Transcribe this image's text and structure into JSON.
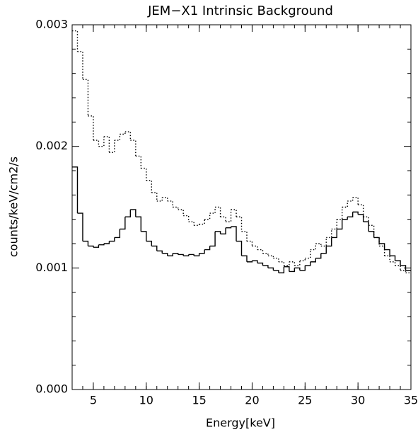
{
  "chart_data": {
    "type": "step",
    "title": "JEM−X1 Intrinsic Background",
    "x_label": "Energy[keV]",
    "y_label": "counts/keV/cm2/s",
    "x": [
      3,
      3.5,
      4,
      4.5,
      5,
      5.5,
      6,
      6.5,
      7,
      7.5,
      8,
      8.5,
      9,
      9.5,
      10,
      10.5,
      11,
      11.5,
      12,
      12.5,
      13,
      13.5,
      14,
      14.5,
      15,
      15.5,
      16,
      16.5,
      17,
      17.5,
      18,
      18.5,
      19,
      19.5,
      20,
      20.5,
      21,
      21.5,
      22,
      22.5,
      23,
      23.5,
      24,
      24.5,
      25,
      25.5,
      26,
      26.5,
      27,
      27.5,
      28,
      28.5,
      29,
      29.5,
      30,
      30.5,
      31,
      31.5,
      32,
      32.5,
      33,
      33.5,
      34,
      34.5
    ],
    "series": [
      {
        "color": "#000000",
        "linestyle": "solid",
        "values": [
          0.00183,
          0.00145,
          0.00122,
          0.00118,
          0.00117,
          0.00119,
          0.0012,
          0.00122,
          0.00125,
          0.00132,
          0.00142,
          0.00148,
          0.00142,
          0.0013,
          0.00122,
          0.00118,
          0.00114,
          0.00112,
          0.0011,
          0.00112,
          0.00111,
          0.0011,
          0.00111,
          0.0011,
          0.00112,
          0.00115,
          0.00118,
          0.0013,
          0.00128,
          0.00133,
          0.00134,
          0.00122,
          0.0011,
          0.00105,
          0.00106,
          0.00104,
          0.00102,
          0.001,
          0.00098,
          0.00096,
          0.00101,
          0.00097,
          0.001,
          0.00098,
          0.00102,
          0.00105,
          0.00108,
          0.00112,
          0.00118,
          0.00125,
          0.00132,
          0.0014,
          0.00142,
          0.00146,
          0.00144,
          0.00138,
          0.0013,
          0.00125,
          0.0012,
          0.00115,
          0.0011,
          0.00106,
          0.00102,
          0.00098
        ]
      },
      {
        "color": "#000000",
        "linestyle": "dotted",
        "values": [
          0.00295,
          0.00278,
          0.00255,
          0.00225,
          0.00205,
          0.002,
          0.00208,
          0.00195,
          0.00205,
          0.0021,
          0.00212,
          0.00205,
          0.00192,
          0.00182,
          0.00172,
          0.00162,
          0.00155,
          0.00158,
          0.00155,
          0.0015,
          0.00148,
          0.00143,
          0.00138,
          0.00135,
          0.00136,
          0.0014,
          0.00145,
          0.0015,
          0.00142,
          0.00138,
          0.00148,
          0.00142,
          0.0013,
          0.00122,
          0.00118,
          0.00115,
          0.00112,
          0.0011,
          0.00108,
          0.00105,
          0.00102,
          0.00105,
          0.00102,
          0.00106,
          0.00108,
          0.00115,
          0.0012,
          0.00118,
          0.00125,
          0.00132,
          0.0014,
          0.0015,
          0.00155,
          0.00158,
          0.00152,
          0.00142,
          0.00135,
          0.00125,
          0.00118,
          0.0011,
          0.00105,
          0.00102,
          0.00098,
          0.00096
        ]
      }
    ],
    "xlim": [
      3,
      35
    ],
    "xticks": [
      5,
      10,
      15,
      20,
      25,
      30,
      35
    ],
    "ylim": [
      0,
      0.003
    ],
    "yticks": [
      {
        "value": 0,
        "label": "0.000"
      },
      0.001,
      0.002,
      0.003
    ]
  }
}
